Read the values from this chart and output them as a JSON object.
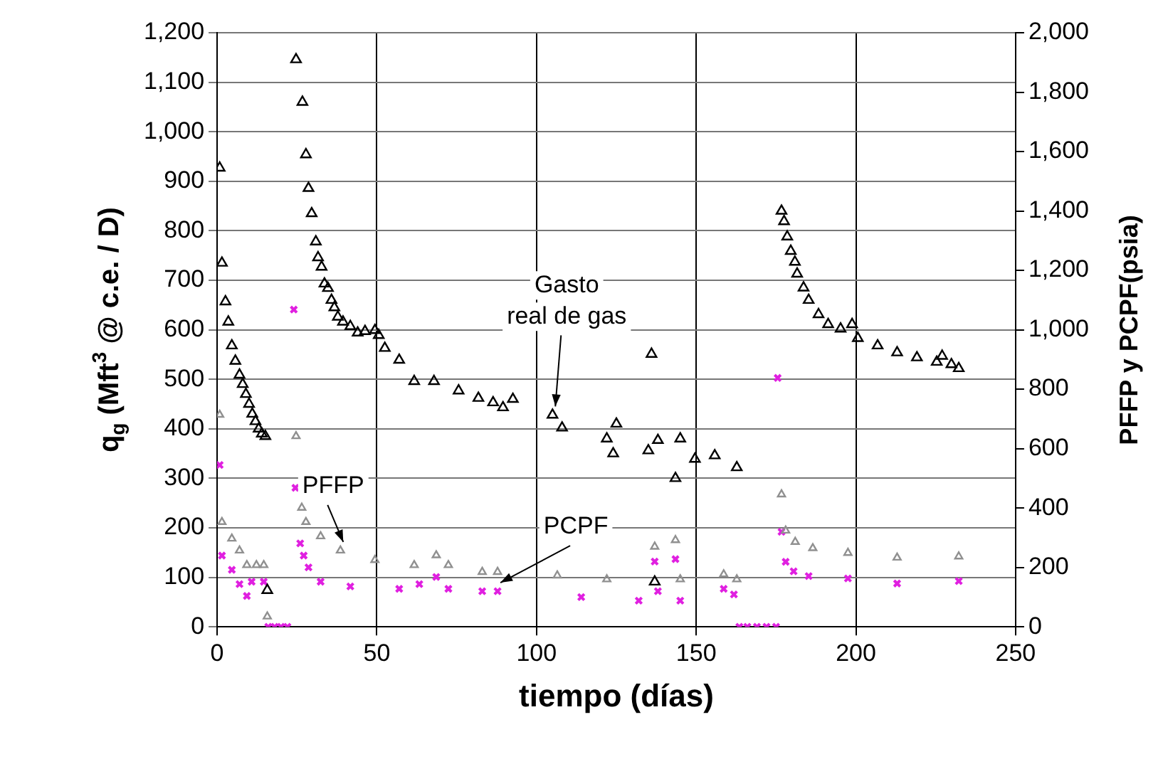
{
  "chart_data": {
    "type": "scatter",
    "xlabel": "tiempo (días)",
    "ylabel": "q$_{g}$ (Mft$^{3}$ @ c.e. / D)",
    "y2label": "PFFP y PCPF(psia)",
    "xlim": [
      0,
      250
    ],
    "xticks": [
      0,
      50,
      100,
      150,
      200,
      250
    ],
    "ylim": [
      0,
      1200
    ],
    "yticks": [
      0,
      100,
      200,
      300,
      400,
      500,
      600,
      700,
      800,
      900,
      {
        "value": 1000,
        "label": "1,000"
      },
      {
        "value": 1100,
        "label": "1,100"
      },
      {
        "value": 1200,
        "label": "1,200"
      }
    ],
    "y2lim": [
      0,
      2000
    ],
    "y2ticks": [
      0,
      200,
      400,
      600,
      800,
      {
        "value": 1000,
        "label": "1,000"
      },
      {
        "value": 1200,
        "label": "1,200"
      },
      {
        "value": 1400,
        "label": "1,400"
      },
      {
        "value": 1600,
        "label": "1,600"
      },
      {
        "value": 1800,
        "label": "1,800"
      },
      {
        "value": 2000,
        "label": "2,000"
      }
    ],
    "grid": true,
    "legend": false,
    "series": [
      {
        "name": "Gasto real de gas",
        "color": "#000000",
        "marker": "triangle",
        "x": [
          0.8,
          1.5,
          2.6,
          3.5,
          4.6,
          5.7,
          7,
          8,
          9,
          10,
          11,
          12,
          13,
          14,
          15.1,
          15.7,
          24.7,
          26.7,
          27.8,
          28.6,
          29.6,
          30.9,
          31.6,
          32.7,
          33.6,
          34.7,
          35.8,
          36.7,
          37.8,
          39.4,
          41.7,
          44,
          46.3,
          49.4,
          50.6,
          52.5,
          57,
          61.7,
          67.9,
          75.6,
          81.8,
          86.4,
          89.5,
          92.6,
          105,
          108,
          122,
          124,
          125,
          135,
          136,
          137,
          138,
          143.5,
          145,
          149.6,
          155.8,
          162.7,
          176.7,
          177.5,
          178.5,
          179.6,
          180.9,
          181.6,
          183.6,
          185.2,
          188.3,
          191.3,
          195.2,
          198.8,
          200.6,
          206.8,
          212.9,
          219.1,
          225.3,
          227,
          229.9,
          232.2
        ],
        "values": [
          927,
          735,
          657,
          616,
          568,
          537,
          509,
          490,
          470,
          450,
          430,
          415,
          400,
          390,
          385,
          74,
          1146,
          1060,
          954,
          886,
          835,
          778,
          746,
          727,
          693,
          684,
          660,
          645,
          626,
          616,
          607,
          594,
          597,
          599,
          589,
          563,
          539,
          496,
          496,
          477,
          462,
          453,
          443,
          460,
          428,
          402,
          380,
          350,
          410,
          356,
          551,
          91,
          377,
          300,
          380,
          339,
          346,
          322,
          840,
          819,
          788,
          759,
          737,
          713,
          685,
          660,
          631,
          611,
          602,
          611,
          583,
          568,
          554,
          544,
          535,
          547,
          530,
          522
        ]
      },
      {
        "name": "PFFP",
        "color": "#909090",
        "marker": "triangle",
        "axis": "y2",
        "x": [
          0.8,
          1.5,
          4.6,
          7,
          9.3,
          12.3,
          14.6,
          15.7,
          24.7,
          26.5,
          27.8,
          32.4,
          38.6,
          49.4,
          61.7,
          68.6,
          72.4,
          83,
          87.8,
          106.5,
          122,
          137,
          143.5,
          145,
          158.6,
          162.7,
          176.7,
          178,
          181,
          186.5,
          197.5,
          212.9,
          232.2
        ],
        "values": [
          714,
          353,
          297,
          257,
          208,
          208,
          208,
          35,
          642,
          401,
          353,
          305,
          257,
          225,
          208,
          241,
          208,
          185,
          185,
          173,
          160,
          270,
          292,
          160,
          177,
          160,
          446,
          324,
          286,
          265,
          249,
          233,
          237
        ]
      },
      {
        "name": "PCPF",
        "color": "#e020e0",
        "marker": "cross",
        "axis": "y2",
        "x": [
          0.8,
          1.5,
          4.6,
          7,
          9.3,
          10.8,
          14.6,
          16,
          18,
          20,
          22,
          24,
          24.5,
          26,
          27.1,
          28.6,
          32.4,
          41.7,
          57,
          63.3,
          68.6,
          72.4,
          83,
          87.8,
          114,
          132,
          137,
          138,
          143.5,
          145,
          158.6,
          161.8,
          163.5,
          166,
          169,
          172,
          175,
          175.5,
          176.7,
          178,
          180.5,
          185.2,
          197.5,
          212.9,
          232.2
        ],
        "values": [
          545,
          240,
          192,
          144,
          104,
          152,
          152,
          0,
          0,
          0,
          0,
          1068,
          468,
          281,
          240,
          200,
          152,
          136,
          128,
          144,
          168,
          128,
          120,
          120,
          100,
          88,
          220,
          120,
          228,
          88,
          128,
          109,
          0,
          0,
          0,
          0,
          0,
          838,
          320,
          219,
          187,
          171,
          163,
          146,
          154
        ]
      }
    ]
  }
}
